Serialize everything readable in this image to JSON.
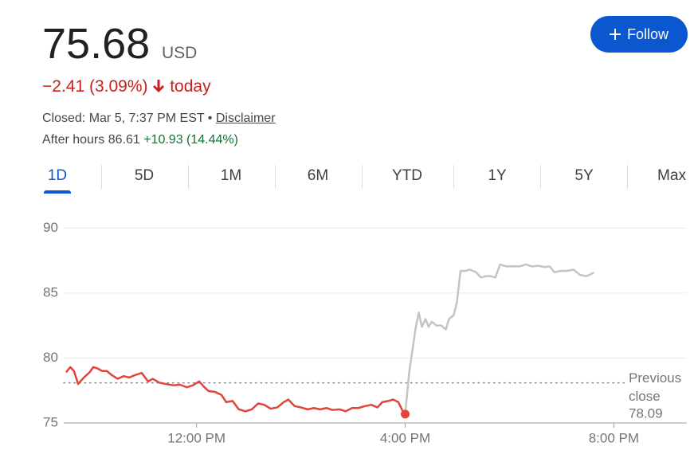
{
  "quote": {
    "price": "75.68",
    "currency": "USD",
    "change": "−2.41 (3.09%)",
    "change_suffix": "today",
    "status": "Closed: Mar 5, 7:37 PM EST",
    "separator": "•",
    "disclaimer": "Disclaimer",
    "after_hours_label": "After hours",
    "after_hours_price": "86.61",
    "after_hours_change": "+10.93 (14.44%)"
  },
  "follow_button": "Follow",
  "tabs": [
    "1D",
    "5D",
    "1M",
    "6M",
    "YTD",
    "1Y",
    "5Y",
    "Max"
  ],
  "selected_tab": 0,
  "chart_data": {
    "type": "line",
    "series": [
      {
        "color": "#e0443b",
        "x": [
          9.5,
          9.58,
          9.65,
          9.73,
          9.84,
          9.95,
          10.02,
          10.1,
          10.19,
          10.28,
          10.37,
          10.49,
          10.6,
          10.71,
          10.83,
          10.95,
          11.07,
          11.16,
          11.29,
          11.41,
          11.56,
          11.68,
          11.81,
          11.93,
          12.05,
          12.14,
          12.23,
          12.35,
          12.48,
          12.57,
          12.69,
          12.81,
          12.94,
          13.06,
          13.18,
          13.3,
          13.42,
          13.55,
          13.67,
          13.76,
          13.88,
          14.0,
          14.13,
          14.25,
          14.37,
          14.49,
          14.61,
          14.74,
          14.86,
          14.98,
          15.1,
          15.23,
          15.35,
          15.47,
          15.56,
          15.68,
          15.77,
          15.87,
          15.96,
          16.0
        ],
        "values": [
          78.9,
          79.3,
          79.0,
          78.0,
          78.5,
          78.9,
          79.3,
          79.2,
          79.0,
          79.0,
          78.7,
          78.4,
          78.6,
          78.5,
          78.7,
          78.85,
          78.2,
          78.4,
          78.1,
          78.0,
          77.9,
          77.95,
          77.75,
          77.9,
          78.2,
          77.8,
          77.45,
          77.4,
          77.15,
          76.6,
          76.7,
          76.05,
          75.9,
          76.05,
          76.5,
          76.4,
          76.1,
          76.2,
          76.6,
          76.8,
          76.3,
          76.2,
          76.05,
          76.15,
          76.05,
          76.15,
          76.0,
          76.05,
          75.9,
          76.15,
          76.15,
          76.3,
          76.4,
          76.2,
          76.6,
          76.7,
          76.8,
          76.6,
          75.85,
          75.68
        ]
      },
      {
        "color": "#c4c4c4",
        "x": [
          16.0,
          16.08,
          16.14,
          16.2,
          16.26,
          16.32,
          16.39,
          16.45,
          16.51,
          16.6,
          16.69,
          16.78,
          16.84,
          16.93,
          16.99,
          17.06,
          17.15,
          17.24,
          17.36,
          17.45,
          17.55,
          17.64,
          17.73,
          17.82,
          17.94,
          18.06,
          18.19,
          18.31,
          18.43,
          18.55,
          18.68,
          18.77,
          18.86,
          18.98,
          19.1,
          19.23,
          19.35,
          19.47,
          19.56,
          19.62
        ],
        "values": [
          75.68,
          79.0,
          80.6,
          82.3,
          83.5,
          82.4,
          83.0,
          82.4,
          82.8,
          82.5,
          82.5,
          82.2,
          83.0,
          83.3,
          84.25,
          86.7,
          86.7,
          86.8,
          86.6,
          86.2,
          86.3,
          86.3,
          86.2,
          87.2,
          87.05,
          87.05,
          87.05,
          87.2,
          87.05,
          87.1,
          87.0,
          87.05,
          86.6,
          86.7,
          86.7,
          86.8,
          86.4,
          86.3,
          86.45,
          86.6
        ]
      }
    ],
    "xlim": [
      9.5,
      21.4
    ],
    "xticks": [
      {
        "value": 12,
        "label": "12:00 PM"
      },
      {
        "value": 16,
        "label": "4:00 PM"
      },
      {
        "value": 20,
        "label": "8:00 PM"
      }
    ],
    "ylim": [
      75,
      91
    ],
    "yticks": [
      75,
      80,
      85,
      90
    ],
    "grid": true,
    "reference": {
      "value": 78.09,
      "label": "Previous close"
    }
  }
}
